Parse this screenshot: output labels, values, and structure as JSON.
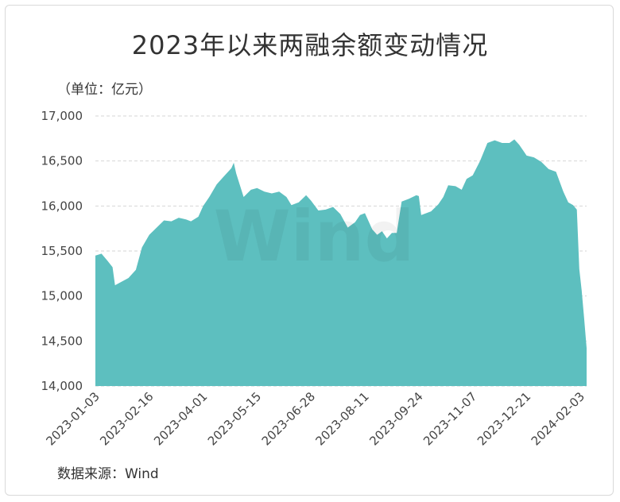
{
  "title": "2023年以来两融余额变动情况",
  "unit_label": "（单位：亿元）",
  "source": "数据来源：Wind",
  "watermark": "Wind",
  "chart_data": {
    "type": "area",
    "title": "2023年以来两融余额变动情况",
    "xlabel": "",
    "ylabel": "（单位：亿元）",
    "ylim": [
      14000,
      17000
    ],
    "yticks": [
      14000,
      14500,
      15000,
      15500,
      16000,
      16500,
      17000
    ],
    "ytick_labels": [
      "14,000",
      "14,500",
      "15,000",
      "15,500",
      "16,000",
      "16,500",
      "17,000"
    ],
    "xtick_labels": [
      "2023-01-03",
      "2023-02-16",
      "2023-04-01",
      "2023-05-15",
      "2023-06-28",
      "2023-08-11",
      "2023-09-24",
      "2023-11-07",
      "2023-12-21",
      "2024-02-03"
    ],
    "grid": true,
    "legend": "none",
    "fill_color": "#5dbfbf",
    "series": [
      {
        "points": [
          [
            "2023-01-03",
            15450
          ],
          [
            "2023-01-08",
            15470
          ],
          [
            "2023-01-13",
            15390
          ],
          [
            "2023-01-17",
            15320
          ],
          [
            "2023-01-19",
            15120
          ],
          [
            "2023-01-30",
            15200
          ],
          [
            "2023-02-05",
            15290
          ],
          [
            "2023-02-10",
            15540
          ],
          [
            "2023-02-16",
            15680
          ],
          [
            "2023-02-22",
            15760
          ],
          [
            "2023-02-28",
            15840
          ],
          [
            "2023-03-06",
            15830
          ],
          [
            "2023-03-12",
            15870
          ],
          [
            "2023-03-18",
            15850
          ],
          [
            "2023-03-22",
            15830
          ],
          [
            "2023-03-28",
            15880
          ],
          [
            "2023-04-01",
            16000
          ],
          [
            "2023-04-06",
            16100
          ],
          [
            "2023-04-12",
            16240
          ],
          [
            "2023-04-18",
            16330
          ],
          [
            "2023-04-24",
            16420
          ],
          [
            "2023-04-26",
            16480
          ],
          [
            "2023-04-28",
            16360
          ],
          [
            "2023-05-04",
            16100
          ],
          [
            "2023-05-10",
            16180
          ],
          [
            "2023-05-15",
            16200
          ],
          [
            "2023-05-21",
            16160
          ],
          [
            "2023-05-27",
            16140
          ],
          [
            "2023-06-02",
            16160
          ],
          [
            "2023-06-08",
            16100
          ],
          [
            "2023-06-12",
            16010
          ],
          [
            "2023-06-18",
            16040
          ],
          [
            "2023-06-24",
            16120
          ],
          [
            "2023-06-28",
            16060
          ],
          [
            "2023-07-04",
            15950
          ],
          [
            "2023-07-10",
            15960
          ],
          [
            "2023-07-16",
            15990
          ],
          [
            "2023-07-22",
            15910
          ],
          [
            "2023-07-28",
            15760
          ],
          [
            "2023-08-03",
            15820
          ],
          [
            "2023-08-07",
            15900
          ],
          [
            "2023-08-11",
            15920
          ],
          [
            "2023-08-17",
            15740
          ],
          [
            "2023-08-21",
            15680
          ],
          [
            "2023-08-25",
            15720
          ],
          [
            "2023-08-29",
            15640
          ],
          [
            "2023-09-02",
            15700
          ],
          [
            "2023-09-06",
            15700
          ],
          [
            "2023-09-10",
            16050
          ],
          [
            "2023-09-16",
            16080
          ],
          [
            "2023-09-22",
            16120
          ],
          [
            "2023-09-24",
            16110
          ],
          [
            "2023-09-26",
            15900
          ],
          [
            "2023-10-04",
            15940
          ],
          [
            "2023-10-10",
            16020
          ],
          [
            "2023-10-14",
            16100
          ],
          [
            "2023-10-18",
            16230
          ],
          [
            "2023-10-24",
            16220
          ],
          [
            "2023-10-29",
            16180
          ],
          [
            "2023-11-02",
            16300
          ],
          [
            "2023-11-07",
            16340
          ],
          [
            "2023-11-13",
            16500
          ],
          [
            "2023-11-19",
            16700
          ],
          [
            "2023-11-25",
            16730
          ],
          [
            "2023-12-01",
            16700
          ],
          [
            "2023-12-07",
            16700
          ],
          [
            "2023-12-11",
            16740
          ],
          [
            "2023-12-15",
            16680
          ],
          [
            "2023-12-19",
            16600
          ],
          [
            "2023-12-21",
            16560
          ],
          [
            "2023-12-27",
            16540
          ],
          [
            "2024-01-02",
            16490
          ],
          [
            "2024-01-08",
            16410
          ],
          [
            "2024-01-14",
            16380
          ],
          [
            "2024-01-20",
            16160
          ],
          [
            "2024-01-24",
            16040
          ],
          [
            "2024-01-28",
            16010
          ],
          [
            "2024-01-31",
            15960
          ],
          [
            "2024-02-02",
            15300
          ],
          [
            "2024-02-04",
            15060
          ],
          [
            "2024-02-06",
            14750
          ],
          [
            "2024-02-08",
            14420
          ]
        ]
      }
    ]
  }
}
